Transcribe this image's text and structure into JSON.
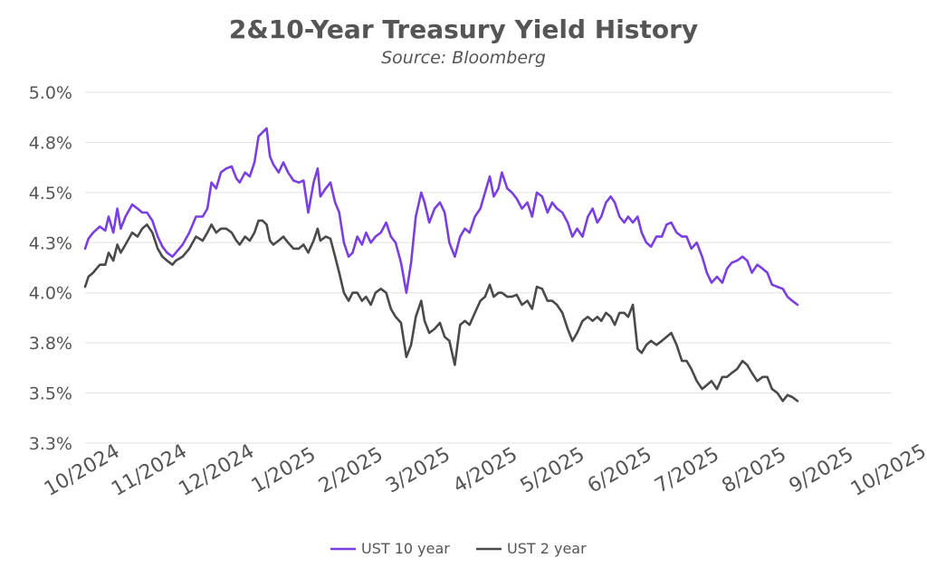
{
  "chart_data": {
    "type": "line",
    "title": "2&10-Year Treasury Yield History",
    "subtitle": "Source: Bloomberg",
    "xlabel": "",
    "ylabel": "",
    "ylim": [
      3.25,
      5.0
    ],
    "yticks": [
      "5.0%",
      "4.8%",
      "4.5%",
      "4.3%",
      "4.0%",
      "3.8%",
      "3.5%",
      "3.3%"
    ],
    "ytick_values": [
      5.0,
      4.75,
      4.5,
      4.25,
      4.0,
      3.75,
      3.5,
      3.25
    ],
    "xticks": [
      "10/2024",
      "11/2024",
      "12/2024",
      "1/2025",
      "2/2025",
      "3/2025",
      "4/2025",
      "5/2025",
      "6/2025",
      "7/2025",
      "8/2025",
      "9/2025",
      "10/2025"
    ],
    "xlim": [
      0,
      12
    ],
    "grid": "horizontal",
    "legend_position": "bottom-center",
    "series": [
      {
        "name": "UST 10 year",
        "color": "#7a3fe0",
        "points": [
          [
            0.0,
            4.22
          ],
          [
            0.05,
            4.27
          ],
          [
            0.12,
            4.3
          ],
          [
            0.22,
            4.33
          ],
          [
            0.3,
            4.31
          ],
          [
            0.35,
            4.38
          ],
          [
            0.42,
            4.3
          ],
          [
            0.48,
            4.42
          ],
          [
            0.53,
            4.32
          ],
          [
            0.6,
            4.38
          ],
          [
            0.7,
            4.44
          ],
          [
            0.78,
            4.42
          ],
          [
            0.85,
            4.4
          ],
          [
            0.92,
            4.4
          ],
          [
            1.0,
            4.36
          ],
          [
            1.08,
            4.28
          ],
          [
            1.15,
            4.23
          ],
          [
            1.22,
            4.2
          ],
          [
            1.3,
            4.18
          ],
          [
            1.35,
            4.2
          ],
          [
            1.45,
            4.24
          ],
          [
            1.55,
            4.3
          ],
          [
            1.65,
            4.38
          ],
          [
            1.75,
            4.38
          ],
          [
            1.82,
            4.42
          ],
          [
            1.88,
            4.55
          ],
          [
            1.95,
            4.52
          ],
          [
            2.02,
            4.6
          ],
          [
            2.1,
            4.62
          ],
          [
            2.18,
            4.63
          ],
          [
            2.25,
            4.57
          ],
          [
            2.3,
            4.55
          ],
          [
            2.38,
            4.6
          ],
          [
            2.45,
            4.58
          ],
          [
            2.52,
            4.65
          ],
          [
            2.58,
            4.78
          ],
          [
            2.64,
            4.8
          ],
          [
            2.7,
            4.82
          ],
          [
            2.75,
            4.68
          ],
          [
            2.8,
            4.64
          ],
          [
            2.88,
            4.6
          ],
          [
            2.95,
            4.65
          ],
          [
            3.02,
            4.6
          ],
          [
            3.1,
            4.56
          ],
          [
            3.18,
            4.55
          ],
          [
            3.25,
            4.56
          ],
          [
            3.32,
            4.4
          ],
          [
            3.4,
            4.55
          ],
          [
            3.46,
            4.62
          ],
          [
            3.5,
            4.48
          ],
          [
            3.58,
            4.52
          ],
          [
            3.65,
            4.55
          ],
          [
            3.72,
            4.45
          ],
          [
            3.78,
            4.4
          ],
          [
            3.85,
            4.25
          ],
          [
            3.92,
            4.18
          ],
          [
            3.98,
            4.2
          ],
          [
            4.05,
            4.28
          ],
          [
            4.12,
            4.24
          ],
          [
            4.18,
            4.3
          ],
          [
            4.25,
            4.25
          ],
          [
            4.32,
            4.28
          ],
          [
            4.4,
            4.3
          ],
          [
            4.48,
            4.35
          ],
          [
            4.55,
            4.28
          ],
          [
            4.62,
            4.25
          ],
          [
            4.7,
            4.15
          ],
          [
            4.78,
            4.0
          ],
          [
            4.85,
            4.15
          ],
          [
            4.92,
            4.38
          ],
          [
            5.0,
            4.5
          ],
          [
            5.05,
            4.45
          ],
          [
            5.12,
            4.35
          ],
          [
            5.2,
            4.42
          ],
          [
            5.28,
            4.45
          ],
          [
            5.35,
            4.4
          ],
          [
            5.42,
            4.25
          ],
          [
            5.5,
            4.18
          ],
          [
            5.58,
            4.28
          ],
          [
            5.65,
            4.32
          ],
          [
            5.72,
            4.3
          ],
          [
            5.8,
            4.38
          ],
          [
            5.88,
            4.42
          ],
          [
            5.95,
            4.5
          ],
          [
            6.02,
            4.58
          ],
          [
            6.08,
            4.48
          ],
          [
            6.15,
            4.52
          ],
          [
            6.2,
            4.6
          ],
          [
            6.28,
            4.52
          ],
          [
            6.35,
            4.5
          ],
          [
            6.42,
            4.47
          ],
          [
            6.5,
            4.42
          ],
          [
            6.58,
            4.45
          ],
          [
            6.65,
            4.38
          ],
          [
            6.72,
            4.5
          ],
          [
            6.8,
            4.48
          ],
          [
            6.88,
            4.4
          ],
          [
            6.95,
            4.45
          ],
          [
            7.02,
            4.42
          ],
          [
            7.1,
            4.4
          ],
          [
            7.18,
            4.35
          ],
          [
            7.25,
            4.28
          ],
          [
            7.32,
            4.32
          ],
          [
            7.4,
            4.28
          ],
          [
            7.48,
            4.38
          ],
          [
            7.55,
            4.42
          ],
          [
            7.62,
            4.35
          ],
          [
            7.68,
            4.38
          ],
          [
            7.75,
            4.45
          ],
          [
            7.82,
            4.48
          ],
          [
            7.88,
            4.45
          ],
          [
            7.95,
            4.38
          ],
          [
            8.02,
            4.35
          ],
          [
            8.08,
            4.38
          ],
          [
            8.15,
            4.35
          ],
          [
            8.22,
            4.38
          ],
          [
            8.28,
            4.3
          ],
          [
            8.35,
            4.25
          ],
          [
            8.42,
            4.23
          ],
          [
            8.5,
            4.28
          ],
          [
            8.58,
            4.28
          ],
          [
            8.65,
            4.34
          ],
          [
            8.72,
            4.35
          ],
          [
            8.8,
            4.3
          ],
          [
            8.88,
            4.28
          ],
          [
            8.95,
            4.28
          ],
          [
            9.02,
            4.22
          ],
          [
            9.1,
            4.25
          ],
          [
            9.18,
            4.18
          ],
          [
            9.25,
            4.1
          ],
          [
            9.32,
            4.05
          ],
          [
            9.4,
            4.08
          ],
          [
            9.48,
            4.05
          ],
          [
            9.55,
            4.12
          ],
          [
            9.62,
            4.15
          ],
          [
            9.7,
            4.16
          ],
          [
            9.78,
            4.18
          ],
          [
            9.85,
            4.16
          ],
          [
            9.92,
            4.1
          ],
          [
            10.0,
            4.14
          ],
          [
            10.08,
            4.12
          ],
          [
            10.15,
            4.1
          ],
          [
            10.22,
            4.04
          ],
          [
            10.3,
            4.03
          ],
          [
            10.38,
            4.02
          ],
          [
            10.45,
            3.98
          ],
          [
            10.52,
            3.96
          ],
          [
            10.6,
            3.94
          ]
        ]
      },
      {
        "name": "UST 2 year",
        "color": "#4a4a4a",
        "points": [
          [
            0.0,
            4.03
          ],
          [
            0.05,
            4.08
          ],
          [
            0.12,
            4.1
          ],
          [
            0.22,
            4.14
          ],
          [
            0.3,
            4.14
          ],
          [
            0.35,
            4.2
          ],
          [
            0.42,
            4.16
          ],
          [
            0.48,
            4.24
          ],
          [
            0.53,
            4.2
          ],
          [
            0.6,
            4.24
          ],
          [
            0.7,
            4.3
          ],
          [
            0.78,
            4.28
          ],
          [
            0.85,
            4.32
          ],
          [
            0.92,
            4.34
          ],
          [
            1.0,
            4.3
          ],
          [
            1.08,
            4.22
          ],
          [
            1.15,
            4.18
          ],
          [
            1.22,
            4.16
          ],
          [
            1.3,
            4.14
          ],
          [
            1.35,
            4.16
          ],
          [
            1.45,
            4.18
          ],
          [
            1.55,
            4.22
          ],
          [
            1.65,
            4.28
          ],
          [
            1.75,
            4.26
          ],
          [
            1.82,
            4.3
          ],
          [
            1.88,
            4.34
          ],
          [
            1.95,
            4.3
          ],
          [
            2.02,
            4.32
          ],
          [
            2.1,
            4.32
          ],
          [
            2.18,
            4.3
          ],
          [
            2.25,
            4.26
          ],
          [
            2.3,
            4.24
          ],
          [
            2.38,
            4.28
          ],
          [
            2.45,
            4.26
          ],
          [
            2.52,
            4.3
          ],
          [
            2.58,
            4.36
          ],
          [
            2.64,
            4.36
          ],
          [
            2.7,
            4.34
          ],
          [
            2.75,
            4.26
          ],
          [
            2.8,
            4.24
          ],
          [
            2.88,
            4.26
          ],
          [
            2.95,
            4.28
          ],
          [
            3.02,
            4.25
          ],
          [
            3.1,
            4.22
          ],
          [
            3.18,
            4.22
          ],
          [
            3.25,
            4.24
          ],
          [
            3.32,
            4.2
          ],
          [
            3.4,
            4.26
          ],
          [
            3.46,
            4.32
          ],
          [
            3.5,
            4.26
          ],
          [
            3.58,
            4.28
          ],
          [
            3.65,
            4.27
          ],
          [
            3.72,
            4.18
          ],
          [
            3.78,
            4.1
          ],
          [
            3.85,
            4.0
          ],
          [
            3.92,
            3.96
          ],
          [
            3.98,
            4.0
          ],
          [
            4.05,
            4.0
          ],
          [
            4.12,
            3.96
          ],
          [
            4.18,
            3.98
          ],
          [
            4.25,
            3.94
          ],
          [
            4.32,
            4.0
          ],
          [
            4.4,
            4.02
          ],
          [
            4.48,
            4.0
          ],
          [
            4.55,
            3.92
          ],
          [
            4.62,
            3.88
          ],
          [
            4.7,
            3.85
          ],
          [
            4.78,
            3.68
          ],
          [
            4.85,
            3.74
          ],
          [
            4.92,
            3.88
          ],
          [
            5.0,
            3.96
          ],
          [
            5.05,
            3.86
          ],
          [
            5.12,
            3.8
          ],
          [
            5.2,
            3.82
          ],
          [
            5.28,
            3.85
          ],
          [
            5.35,
            3.78
          ],
          [
            5.42,
            3.76
          ],
          [
            5.5,
            3.64
          ],
          [
            5.58,
            3.84
          ],
          [
            5.65,
            3.86
          ],
          [
            5.72,
            3.84
          ],
          [
            5.8,
            3.9
          ],
          [
            5.88,
            3.96
          ],
          [
            5.95,
            3.98
          ],
          [
            6.02,
            4.04
          ],
          [
            6.08,
            3.98
          ],
          [
            6.15,
            4.0
          ],
          [
            6.2,
            4.0
          ],
          [
            6.28,
            3.98
          ],
          [
            6.35,
            3.98
          ],
          [
            6.42,
            3.99
          ],
          [
            6.5,
            3.94
          ],
          [
            6.58,
            3.96
          ],
          [
            6.65,
            3.92
          ],
          [
            6.72,
            4.03
          ],
          [
            6.8,
            4.02
          ],
          [
            6.88,
            3.96
          ],
          [
            6.95,
            3.96
          ],
          [
            7.02,
            3.94
          ],
          [
            7.1,
            3.9
          ],
          [
            7.18,
            3.82
          ],
          [
            7.25,
            3.76
          ],
          [
            7.32,
            3.8
          ],
          [
            7.4,
            3.86
          ],
          [
            7.48,
            3.88
          ],
          [
            7.55,
            3.86
          ],
          [
            7.62,
            3.88
          ],
          [
            7.68,
            3.86
          ],
          [
            7.75,
            3.9
          ],
          [
            7.82,
            3.88
          ],
          [
            7.88,
            3.84
          ],
          [
            7.95,
            3.9
          ],
          [
            8.02,
            3.9
          ],
          [
            8.08,
            3.88
          ],
          [
            8.15,
            3.94
          ],
          [
            8.22,
            3.72
          ],
          [
            8.28,
            3.7
          ],
          [
            8.35,
            3.74
          ],
          [
            8.42,
            3.76
          ],
          [
            8.5,
            3.74
          ],
          [
            8.58,
            3.76
          ],
          [
            8.65,
            3.78
          ],
          [
            8.72,
            3.8
          ],
          [
            8.8,
            3.74
          ],
          [
            8.88,
            3.66
          ],
          [
            8.95,
            3.66
          ],
          [
            9.02,
            3.62
          ],
          [
            9.1,
            3.56
          ],
          [
            9.18,
            3.52
          ],
          [
            9.25,
            3.54
          ],
          [
            9.32,
            3.56
          ],
          [
            9.4,
            3.52
          ],
          [
            9.48,
            3.58
          ],
          [
            9.55,
            3.58
          ],
          [
            9.62,
            3.6
          ],
          [
            9.7,
            3.62
          ],
          [
            9.78,
            3.66
          ],
          [
            9.85,
            3.64
          ],
          [
            9.92,
            3.6
          ],
          [
            10.0,
            3.56
          ],
          [
            10.08,
            3.58
          ],
          [
            10.15,
            3.58
          ],
          [
            10.22,
            3.52
          ],
          [
            10.3,
            3.5
          ],
          [
            10.38,
            3.46
          ],
          [
            10.45,
            3.49
          ],
          [
            10.52,
            3.48
          ],
          [
            10.6,
            3.46
          ]
        ]
      }
    ]
  }
}
